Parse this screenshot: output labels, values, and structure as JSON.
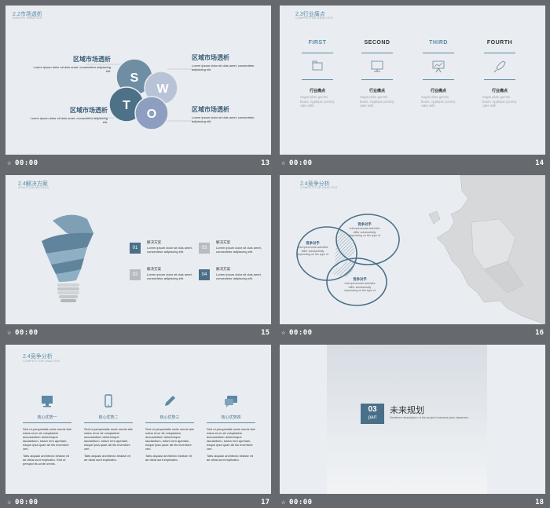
{
  "slides": [
    {
      "number": "13",
      "time": "00:00",
      "title": "2.2市场透析",
      "subtitle": "MARKET ANALYSIS",
      "blocks": [
        {
          "heading": "区域市场透析",
          "text": "Lorem ipsum dolor sit duis amet, consectetur adipiscing elit."
        },
        {
          "heading": "区域市场透析",
          "text": "Lorem ipsum dolor sit duis amet, consectetur adipiscing elit."
        },
        {
          "heading": "区域市场透析",
          "text": "Lorem ipsum dolor sit duis amet, consectetur adipiscing elit."
        },
        {
          "heading": "区域市场透析",
          "text": "Lorem ipsum dolor sit duis amet, consectetur adipiscing elit."
        }
      ],
      "swot": [
        "S",
        "W",
        "T",
        "O"
      ]
    },
    {
      "number": "14",
      "time": "00:00",
      "title": "2.3行业痛点",
      "subtitle": "COMPETITOR ANALYSIS",
      "columns": [
        {
          "label": "FIRST",
          "icon": "folder-icon",
          "heading": "行业痛点",
          "text": "Sugar plum gummi bears. Applepie yummy cake with"
        },
        {
          "label": "SECOND",
          "icon": "monitor-icon",
          "heading": "行业痛点",
          "text": "Sugar plum gummi bears. Applepie yummy cake with"
        },
        {
          "label": "THIRD",
          "icon": "presentation-icon",
          "heading": "行业痛点",
          "text": "Sugar plum gummi bears. Applepie yummy cake with"
        },
        {
          "label": "FOURTH",
          "icon": "rocket-icon",
          "heading": "行业痛点",
          "text": "Sugar plum gummi bears. Applepie yummy cake with"
        }
      ]
    },
    {
      "number": "15",
      "time": "00:00",
      "title": "2.4解决方案",
      "subtitle": "SOLUTION METHOD",
      "items": [
        {
          "num": "01",
          "heading": "解决方案",
          "text": "Lorem ipsum dolor sit duis amet, consectetur adipiscing elit."
        },
        {
          "num": "03",
          "heading": "解决方案",
          "text": "Lorem ipsum dolor sit duis amet, consectetur adipiscing elit."
        },
        {
          "num": "02",
          "heading": "解决方案",
          "text": "Lorem ipsum dolor sit duis amet, consectetur adipiscing elit."
        },
        {
          "num": "04",
          "heading": "解决方案",
          "text": "Lorem ipsum dolor sit duis amet, consectetur adipiscing elit."
        }
      ]
    },
    {
      "number": "16",
      "time": "00:00",
      "title": "2.4竞争分析",
      "subtitle": "COMPETITOR ANALYSIS",
      "venn": [
        {
          "heading": "竞争对手",
          "text": "entrepreneurial activities differ substantially depending on the type of"
        },
        {
          "heading": "竞争对手",
          "text": "entrepreneurial activities differ substantially depending on the type of"
        },
        {
          "heading": "竞争对手",
          "text": "entrepreneurial activities differ substantially depending on the type of"
        }
      ]
    },
    {
      "number": "17",
      "time": "00:00",
      "title": "2.4竞争分析",
      "subtitle": "COMPETITOR ANALYSIS",
      "columns": [
        {
          "icon": "monitor-icon",
          "heading": "核心优势一",
          "text": "Sed ut perspiciatis unde omnis iste natus error sit voluptatem accusantium doloremque laudantium, totam rem aperiam, eaque ipsa quae ab illo inventore veri.",
          "text2": "Taits aiquasi architecto beatae vit ae dicta sunt explicabo. Sed ut perspici tis unde omnis."
        },
        {
          "icon": "phone-icon",
          "heading": "核心优势二",
          "text": "Sed ut perspiciatis unde omnis iste natus error sit voluptatem accusantium doloremque laudantium, totam rem aperiam, eaque ipsa quae ab illo inventore veri.",
          "text2": "Taits aiquasi architecto beatae vit ae dicta sunt explicabo."
        },
        {
          "icon": "pencil-icon",
          "heading": "核心优势三",
          "text": "Sed ut perspiciatis unde omnis iste natus error sit voluptatem accusantium doloremque laudantium, totam rem aperiam, eaque ipsa quae ab illo inventore veri.",
          "text2": "Taits aiquasi architecto beatae vit ae dicta sunt explicabo."
        },
        {
          "icon": "chat-icon",
          "heading": "核心优势四",
          "text": "Sed ut perspiciatis unde omnis iste natus error sit voluptatem accusantium doloremque laudantium, totam rem aperiam, eaque ipsa quae ab illo inventore veri.",
          "text2": "Taits aiquasi architecto beatae vit ae dicta sunt explicabo."
        }
      ]
    },
    {
      "number": "18",
      "time": "00:00",
      "part_num": "03",
      "part_label": "part",
      "heading": "未来规划",
      "text": "Sentence description of the project business plan classmen"
    }
  ],
  "colors": {
    "accent": "#5b89a6",
    "dark": "#4a6f88",
    "bg": "#e9edf1",
    "frame": "#666a6e"
  }
}
